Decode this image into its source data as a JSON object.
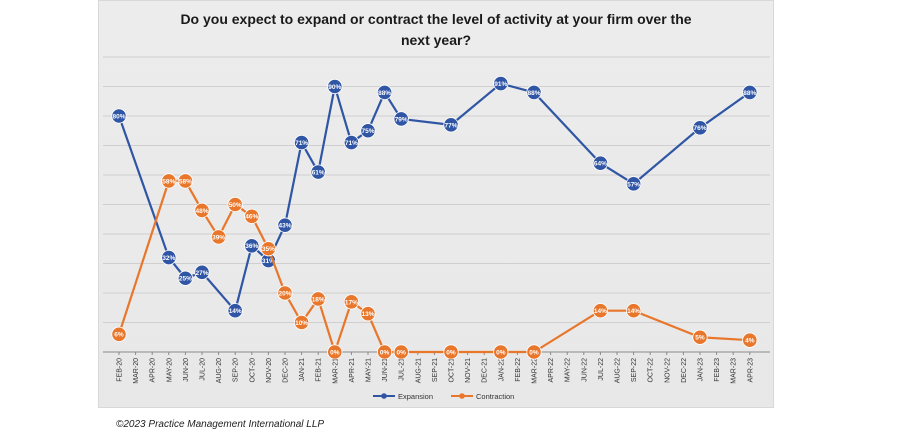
{
  "chart_data": {
    "type": "line",
    "title_line1": "Do you expect to expand or contract the level of activity at your firm over the",
    "title_line2": "next year?",
    "categories": [
      "FEB-20",
      "MAR-20",
      "APR-20",
      "MAY-20",
      "JUN-20",
      "JUL-20",
      "AUG-20",
      "SEP-20",
      "OCT-20",
      "NOV-20",
      "DEC-20",
      "JAN-21",
      "FEB-21",
      "MAR-21",
      "APR-21",
      "MAY-21",
      "JUN-21",
      "JUL-21",
      "AUG-21",
      "SEP-21",
      "OCT-21",
      "NOV-21",
      "DEC-21",
      "JAN-22",
      "FEB-22",
      "MAR-22",
      "APR-22",
      "MAY-22",
      "JUN-22",
      "JUL-22",
      "AUG-22",
      "SEP-22",
      "OCT-22",
      "NOV-22",
      "DEC-22",
      "JAN-23",
      "FEB-23",
      "MAR-23",
      "APR-23"
    ],
    "series": [
      {
        "name": "Expansion",
        "color": "#2f55a4",
        "points": [
          {
            "i": 0,
            "v": 80
          },
          {
            "i": 3,
            "v": 32
          },
          {
            "i": 4,
            "v": 25
          },
          {
            "i": 5,
            "v": 27
          },
          {
            "i": 7,
            "v": 14
          },
          {
            "i": 8,
            "v": 36
          },
          {
            "i": 9,
            "v": 31
          },
          {
            "i": 10,
            "v": 43
          },
          {
            "i": 11,
            "v": 71
          },
          {
            "i": 12,
            "v": 61
          },
          {
            "i": 13,
            "v": 90
          },
          {
            "i": 14,
            "v": 71
          },
          {
            "i": 15,
            "v": 75
          },
          {
            "i": 16,
            "v": 88
          },
          {
            "i": 17,
            "v": 79
          },
          {
            "i": 20,
            "v": 77
          },
          {
            "i": 23,
            "v": 91
          },
          {
            "i": 25,
            "v": 88
          },
          {
            "i": 29,
            "v": 64
          },
          {
            "i": 31,
            "v": 57
          },
          {
            "i": 35,
            "v": 76
          },
          {
            "i": 38,
            "v": 88
          }
        ]
      },
      {
        "name": "Contraction",
        "color": "#e8762b",
        "points": [
          {
            "i": 0,
            "v": 6
          },
          {
            "i": 3,
            "v": 58
          },
          {
            "i": 4,
            "v": 58
          },
          {
            "i": 5,
            "v": 48
          },
          {
            "i": 6,
            "v": 39
          },
          {
            "i": 7,
            "v": 50
          },
          {
            "i": 8,
            "v": 46
          },
          {
            "i": 9,
            "v": 35
          },
          {
            "i": 10,
            "v": 20
          },
          {
            "i": 11,
            "v": 10
          },
          {
            "i": 12,
            "v": 18
          },
          {
            "i": 13,
            "v": 0
          },
          {
            "i": 14,
            "v": 17
          },
          {
            "i": 15,
            "v": 13
          },
          {
            "i": 16,
            "v": 0
          },
          {
            "i": 17,
            "v": 0
          },
          {
            "i": 20,
            "v": 0
          },
          {
            "i": 23,
            "v": 0
          },
          {
            "i": 25,
            "v": 0
          },
          {
            "i": 29,
            "v": 14
          },
          {
            "i": 31,
            "v": 14
          },
          {
            "i": 35,
            "v": 5
          },
          {
            "i": 38,
            "v": 4
          }
        ]
      }
    ],
    "ylim": [
      0,
      100
    ],
    "grid": true,
    "legend": "bottom-center",
    "label_suffix": "%"
  },
  "footer": {
    "copyright": "©2023 Practice Management International LLP"
  }
}
